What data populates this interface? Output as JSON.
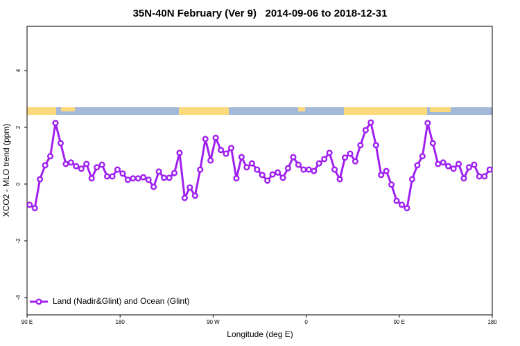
{
  "chart_data": {
    "type": "line",
    "title": "35N-40N February (Ver 9)   2014-09-06 to 2018-12-31",
    "xlabel": "Longitude (deg E)",
    "ylabel": "XCO2 - MLO trend (ppm)",
    "x": [
      92.5,
      97.5,
      102.5,
      107.5,
      112.5,
      117.5,
      122.5,
      127.5,
      132.5,
      137.5,
      142.5,
      147.5,
      152.5,
      157.5,
      162.5,
      167.5,
      172.5,
      177.5,
      182.5,
      187.5,
      192.5,
      197.5,
      202.5,
      207.5,
      212.5,
      217.5,
      222.5,
      227.5,
      232.5,
      237.5,
      242.5,
      247.5,
      252.5,
      257.5,
      262.5,
      267.5,
      272.5,
      277.5,
      282.5,
      287.5,
      292.5,
      297.5,
      302.5,
      307.5,
      312.5,
      317.5,
      322.5,
      327.5,
      332.5,
      337.5,
      342.5,
      347.5,
      352.5,
      357.5,
      362.5,
      367.5,
      372.5,
      377.5,
      382.5,
      387.5,
      392.5,
      397.5,
      402.5,
      407.5,
      412.5,
      417.5,
      422.5,
      427.5,
      432.5,
      437.5,
      442.5,
      447.5,
      452.5,
      457.5,
      462.5,
      467.5,
      472.5,
      477.5,
      482.5,
      487.5,
      492.5,
      497.5,
      502.5,
      507.5,
      512.5,
      517.5,
      522.5,
      527.5,
      532.5,
      537.5
    ],
    "series": [
      {
        "name": "Land (Nadir&Glint) and Ocean (Glint)",
        "color": "#a020f0",
        "values": [
          -0.73,
          -0.85,
          0.17,
          0.66,
          0.98,
          2.15,
          1.44,
          0.71,
          0.76,
          0.63,
          0.54,
          0.71,
          0.2,
          0.59,
          0.68,
          0.27,
          0.27,
          0.51,
          0.37,
          0.15,
          0.2,
          0.2,
          0.24,
          0.15,
          -0.1,
          0.44,
          0.22,
          0.22,
          0.39,
          1.1,
          -0.49,
          -0.12,
          -0.41,
          0.51,
          1.59,
          0.83,
          1.63,
          1.2,
          1.07,
          1.27,
          0.2,
          0.95,
          0.59,
          0.73,
          0.51,
          0.32,
          0.12,
          0.34,
          0.41,
          0.22,
          0.56,
          0.95,
          0.68,
          0.51,
          0.51,
          0.46,
          0.73,
          0.88,
          1.1,
          0.51,
          0.17,
          0.93,
          1.07,
          0.8,
          1.37,
          1.9,
          2.17,
          1.37,
          0.32,
          0.46,
          -0.02,
          -0.59,
          -0.73,
          -0.85,
          0.17,
          0.66,
          0.98,
          2.15,
          1.44,
          0.71,
          0.76,
          0.63,
          0.54,
          0.71,
          0.2,
          0.59,
          0.68,
          0.27,
          0.27,
          0.51
        ]
      }
    ],
    "xlim": [
      90,
      540
    ],
    "xticks": [
      {
        "value": 90,
        "label": "90 E"
      },
      180,
      {
        "value": 270,
        "label": "90 W"
      },
      {
        "value": 360,
        "label": "0"
      },
      {
        "value": 450,
        "label": "90 E"
      },
      180
    ],
    "ylim": [
      -4.61,
      5.56
    ],
    "yticks": [
      -4,
      -2,
      0,
      2,
      4
    ],
    "legend": "bottom-left"
  }
}
